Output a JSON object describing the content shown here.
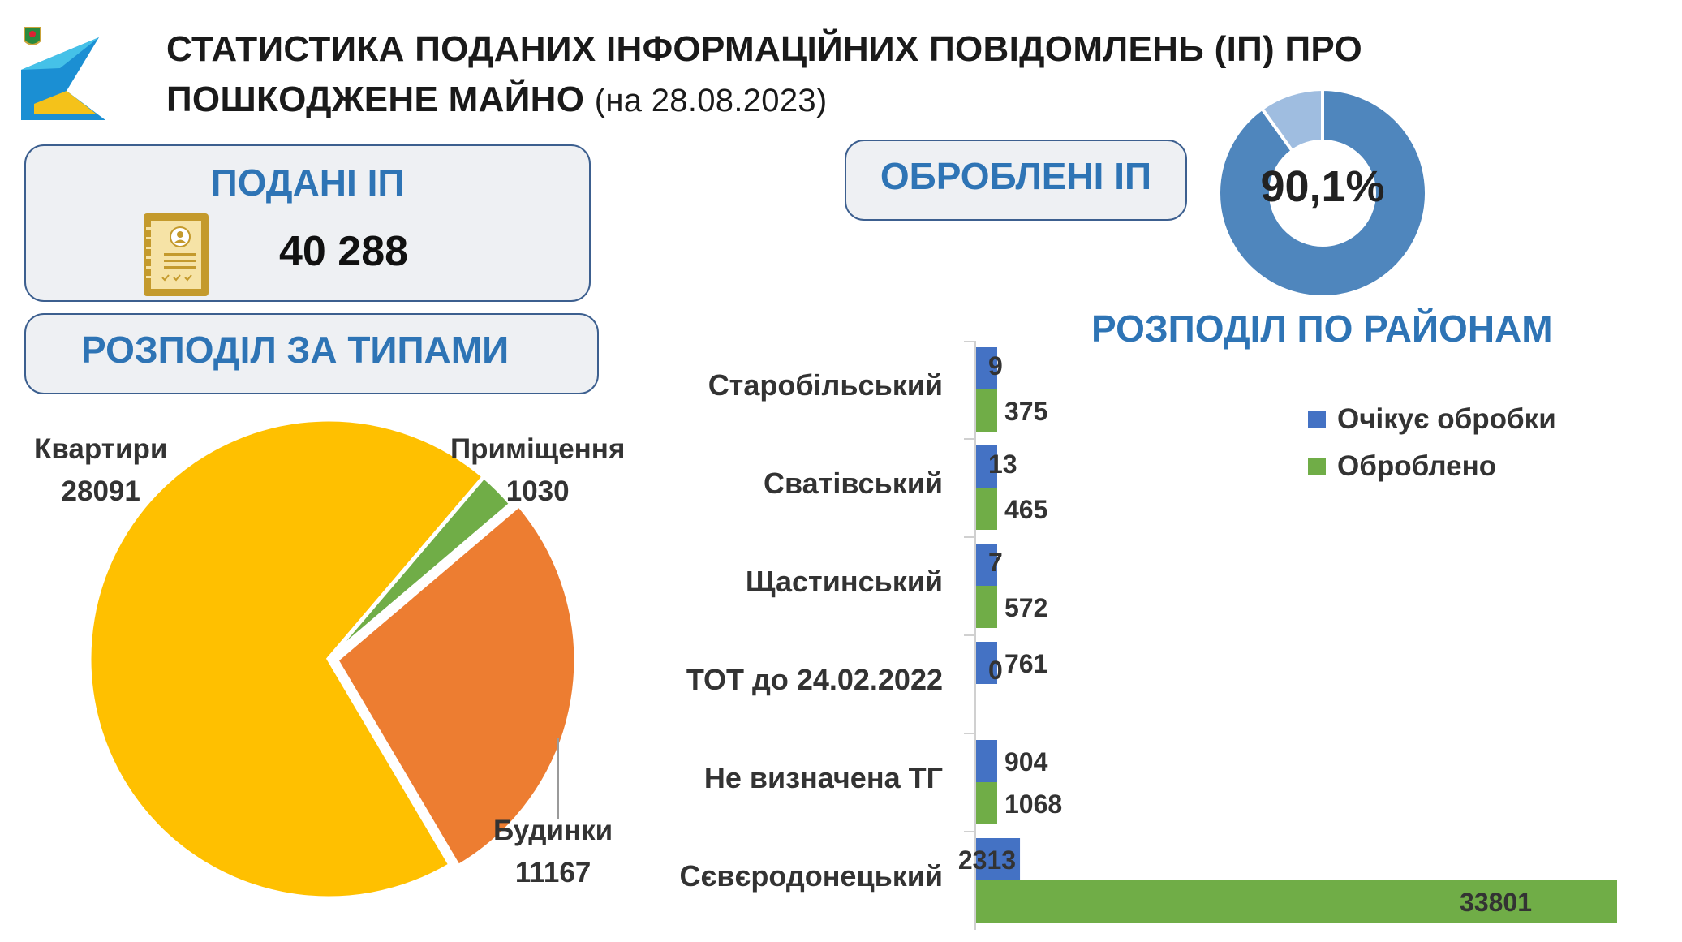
{
  "header": {
    "title_line1": "СТАТИСТИКА ПОДАНИХ ІНФОРМАЦІЙНИХ ПОВІДОМЛЕНЬ (ІП) ПРО",
    "title_line2": "ПОШКОДЖЕНЕ МАЙНО",
    "date": "(на 28.08.2023)"
  },
  "submitted": {
    "title": "ПОДАНІ ІП",
    "value": "40 288",
    "icon": "document-certificate-icon"
  },
  "processed": {
    "title": "ОБРОБЛЕНІ ІП",
    "percent_label": "90,1%",
    "percent": 90.1
  },
  "types_panel": {
    "title": "РОЗПОДІЛ ЗА ТИПАМИ"
  },
  "districts_title": "РОЗПОДІЛ ПО РАЙОНАМ",
  "colors": {
    "accent": "#2e74b5",
    "pie_apartments": "#ffc000",
    "pie_premises": "#70ad47",
    "pie_houses": "#ed7d31",
    "pending": "#4472c4",
    "processed": "#70ad47",
    "donut_main": "#4f86bd",
    "donut_rest": "#9fbde0"
  },
  "chart_data": [
    {
      "type": "pie",
      "slices": [
        {
          "name": "Квартири",
          "value": 28091,
          "value_label": "28091"
        },
        {
          "name": "Приміщення",
          "value": 1030,
          "value_label": "1030"
        },
        {
          "name": "Будинки",
          "value": 11167,
          "value_label": "11167"
        }
      ]
    },
    {
      "type": "pie",
      "subtype": "donut",
      "slices": [
        {
          "name": "",
          "value": 90.1
        },
        {
          "name": "",
          "value": 9.9
        }
      ],
      "center_label": "90,1%"
    },
    {
      "type": "bar",
      "orientation": "horizontal",
      "categories": [
        "Старобільський",
        "Сватівський",
        "Щастинський",
        "ТОТ до 24.02.2022",
        "Не визначена ТГ",
        "Сєвєродонецький"
      ],
      "series": [
        {
          "name": "Очікує обробки",
          "values": [
            9,
            13,
            7,
            761,
            904,
            2313
          ]
        },
        {
          "name": "Оброблено",
          "values": [
            375,
            465,
            572,
            0,
            1068,
            33801
          ]
        }
      ],
      "legend": [
        "Очікує обробки",
        "Оброблено"
      ],
      "legend_position": "top-right",
      "xlim": [
        0,
        33801
      ],
      "grid": false
    }
  ]
}
